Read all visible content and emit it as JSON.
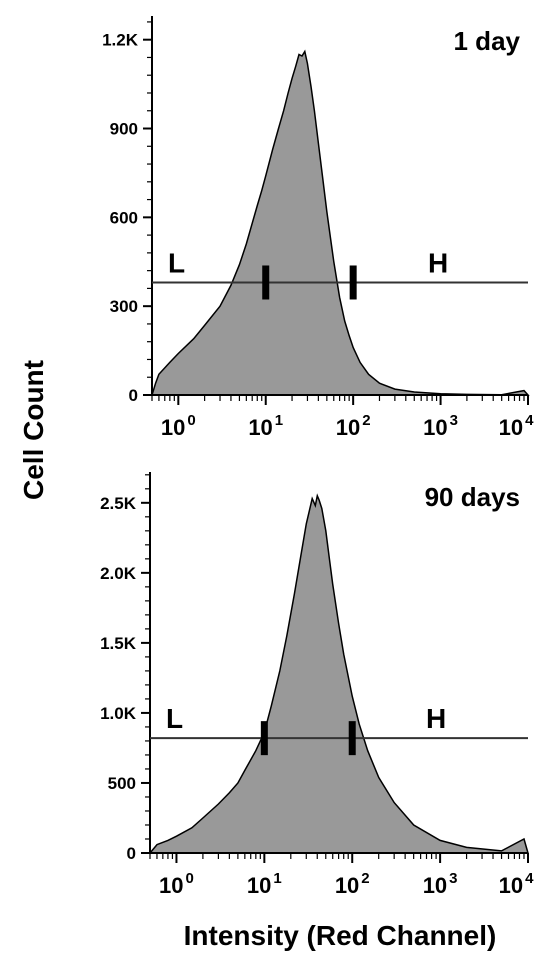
{
  "figure": {
    "ylabel": "Cell Count",
    "xlabel": "Intensity (Red Channel)",
    "colors": {
      "fill": "#999999",
      "stroke": "#000000",
      "gate": "#333333"
    }
  },
  "chart_data": [
    {
      "type": "area",
      "panel_label": "1 day",
      "x_scale": "log",
      "xlim": [
        0.5,
        10000
      ],
      "ylim": [
        0,
        1280
      ],
      "x_ticks": [
        {
          "base": "10",
          "exp": "0"
        },
        {
          "base": "10",
          "exp": "1"
        },
        {
          "base": "10",
          "exp": "2"
        },
        {
          "base": "10",
          "exp": "3"
        },
        {
          "base": "10",
          "exp": "4"
        }
      ],
      "y_ticks": [
        "0",
        "300",
        "600",
        "900",
        "1.2K"
      ],
      "y_tick_values": [
        0,
        300,
        600,
        900,
        1200
      ],
      "series": [
        {
          "x": [
            0.5,
            0.55,
            0.6,
            0.8,
            1.0,
            1.5,
            2,
            3,
            4,
            5,
            6,
            7,
            8,
            9,
            10,
            12,
            14,
            16,
            18,
            20,
            22,
            24,
            26,
            28,
            30,
            33,
            36,
            40,
            45,
            50,
            55,
            60,
            70,
            80,
            90,
            100,
            120,
            150,
            200,
            300,
            500,
            1000,
            2000,
            5000,
            9000,
            10000
          ],
          "y": [
            0,
            40,
            70,
            110,
            140,
            190,
            235,
            300,
            370,
            440,
            510,
            580,
            640,
            690,
            740,
            830,
            900,
            960,
            1020,
            1070,
            1110,
            1150,
            1145,
            1160,
            1120,
            1040,
            960,
            850,
            730,
            620,
            530,
            450,
            330,
            250,
            200,
            160,
            110,
            70,
            40,
            20,
            10,
            4,
            2,
            1,
            15,
            0
          ]
        }
      ],
      "gate": {
        "y": 380,
        "low_label": "L",
        "high_label": "H",
        "markers": [
          10,
          100
        ]
      }
    },
    {
      "type": "area",
      "panel_label": "90 days",
      "x_scale": "log",
      "xlim": [
        0.5,
        10000
      ],
      "ylim": [
        0,
        2720
      ],
      "x_ticks": [
        {
          "base": "10",
          "exp": "0"
        },
        {
          "base": "10",
          "exp": "1"
        },
        {
          "base": "10",
          "exp": "2"
        },
        {
          "base": "10",
          "exp": "3"
        },
        {
          "base": "10",
          "exp": "4"
        }
      ],
      "y_ticks": [
        "0",
        "500",
        "1.0K",
        "1.5K",
        "2.0K",
        "2.5K"
      ],
      "y_tick_values": [
        0,
        500,
        1000,
        1500,
        2000,
        2500
      ],
      "series": [
        {
          "x": [
            0.5,
            0.6,
            0.8,
            1.0,
            1.5,
            2,
            3,
            4,
            5,
            6,
            8,
            10,
            12,
            15,
            18,
            22,
            26,
            30,
            35,
            38,
            40,
            42,
            45,
            50,
            55,
            60,
            70,
            80,
            100,
            120,
            150,
            200,
            300,
            500,
            1000,
            2000,
            5000,
            9000,
            10000
          ],
          "y": [
            0,
            60,
            90,
            120,
            180,
            250,
            350,
            430,
            500,
            590,
            730,
            860,
            1050,
            1300,
            1550,
            1850,
            2120,
            2350,
            2530,
            2480,
            2550,
            2520,
            2460,
            2300,
            2100,
            1920,
            1640,
            1420,
            1120,
            920,
            730,
            540,
            360,
            200,
            90,
            40,
            15,
            100,
            0
          ]
        }
      ],
      "gate": {
        "y": 820,
        "low_label": "L",
        "high_label": "H",
        "markers": [
          10,
          100
        ]
      }
    }
  ]
}
